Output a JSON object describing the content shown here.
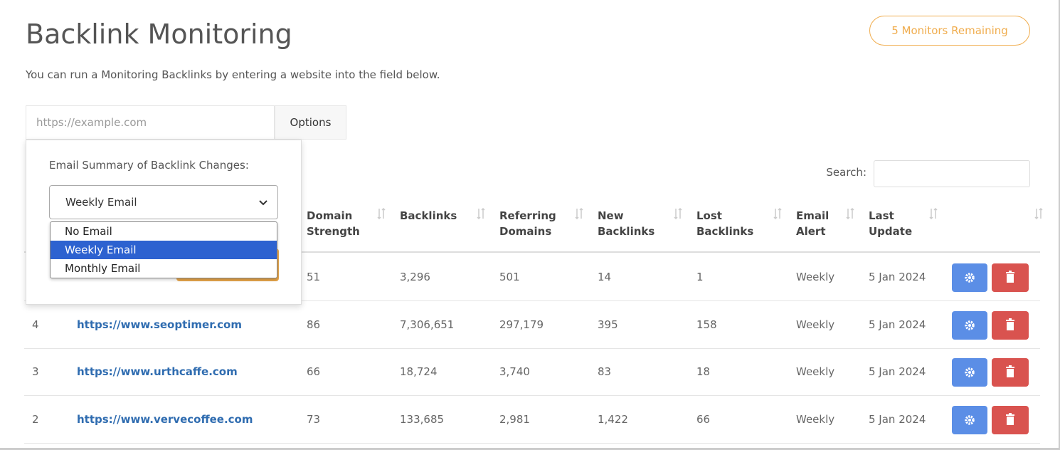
{
  "header": {
    "title": "Backlink Monitoring",
    "badge": "5 Monitors Remaining",
    "description": "You can run a Monitoring Backlinks by entering a website into the field below."
  },
  "form": {
    "url_placeholder": "https://example.com",
    "options_button": "Options",
    "options_panel": {
      "label": "Email Summary of Backlink Changes:",
      "selected": "Weekly Email",
      "choices": [
        "No Email",
        "Weekly Email",
        "Monthly Email"
      ],
      "highlighted": 1
    }
  },
  "search": {
    "label": "Search:"
  },
  "table": {
    "columns": [
      "Domain Strength",
      "Backlinks",
      "Referring Domains",
      "New Backlinks",
      "Lost Backlinks",
      "Email Alert",
      "Last Update"
    ],
    "rows": [
      {
        "domain_strength": "51",
        "backlinks": "3,296",
        "referring_domains": "501",
        "new_backlinks": "14",
        "lost_backlinks": "1",
        "email_alert": "Weekly",
        "last_update": "5 Jan 2024"
      },
      {
        "number": "4",
        "website": "https://www.seoptimer.com",
        "domain_strength": "86",
        "backlinks": "7,306,651",
        "referring_domains": "297,179",
        "new_backlinks": "395",
        "lost_backlinks": "158",
        "email_alert": "Weekly",
        "last_update": "5 Jan 2024"
      },
      {
        "number": "3",
        "website": "https://www.urthcaffe.com",
        "domain_strength": "66",
        "backlinks": "18,724",
        "referring_domains": "3,740",
        "new_backlinks": "83",
        "lost_backlinks": "18",
        "email_alert": "Weekly",
        "last_update": "5 Jan 2024"
      },
      {
        "number": "2",
        "website": "https://www.vervecoffee.com",
        "domain_strength": "73",
        "backlinks": "133,685",
        "referring_domains": "2,981",
        "new_backlinks": "1,422",
        "lost_backlinks": "66",
        "email_alert": "Weekly",
        "last_update": "5 Jan 2024"
      }
    ]
  }
}
